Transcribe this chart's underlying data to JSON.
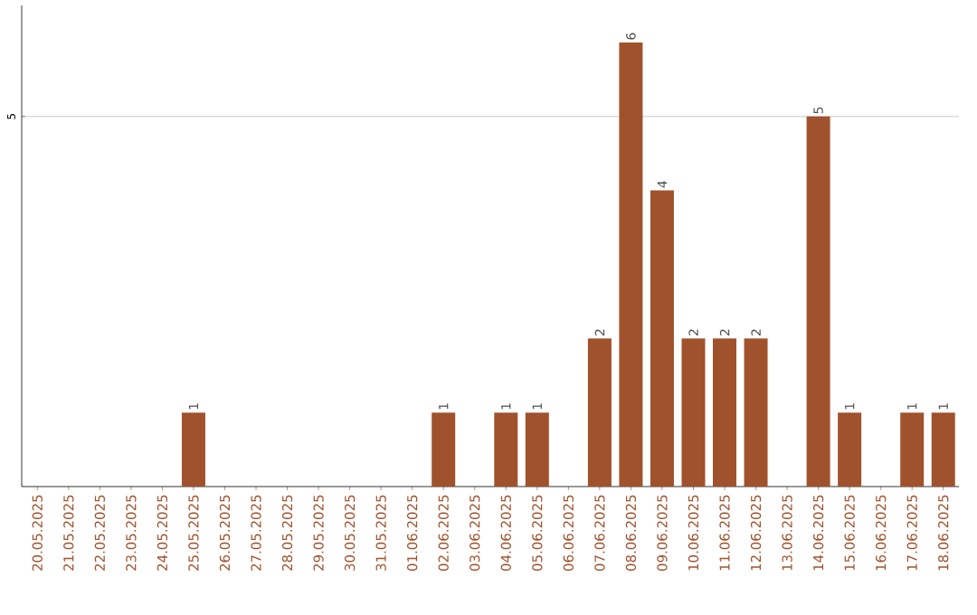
{
  "chart_data": {
    "type": "bar",
    "categories": [
      "20.05.2025",
      "21.05.2025",
      "22.05.2025",
      "23.05.2025",
      "24.05.2025",
      "25.05.2025",
      "26.05.2025",
      "27.05.2025",
      "28.05.2025",
      "29.05.2025",
      "30.05.2025",
      "31.05.2025",
      "01.06.2025",
      "02.06.2025",
      "03.06.2025",
      "04.06.2025",
      "05.06.2025",
      "06.06.2025",
      "07.06.2025",
      "08.06.2025",
      "09.06.2025",
      "10.06.2025",
      "11.06.2025",
      "12.06.2025",
      "13.06.2025",
      "14.06.2025",
      "15.06.2025",
      "16.06.2025",
      "17.06.2025",
      "18.06.2025"
    ],
    "values": [
      0,
      0,
      0,
      0,
      0,
      1,
      0,
      0,
      0,
      0,
      0,
      0,
      0,
      1,
      0,
      1,
      1,
      0,
      2,
      6,
      4,
      2,
      2,
      2,
      0,
      5,
      1,
      0,
      1,
      1
    ],
    "value_labels": [
      null,
      null,
      null,
      null,
      null,
      "1",
      null,
      null,
      null,
      null,
      null,
      null,
      null,
      "1",
      null,
      "1",
      "1",
      null,
      "2",
      "6",
      "4",
      "2",
      "2",
      "2",
      null,
      "5",
      "1",
      null,
      "1",
      "1"
    ],
    "color": "#a0522d",
    "ylim": [
      0,
      6.5
    ],
    "yticks": [
      5
    ],
    "grid": "y"
  }
}
